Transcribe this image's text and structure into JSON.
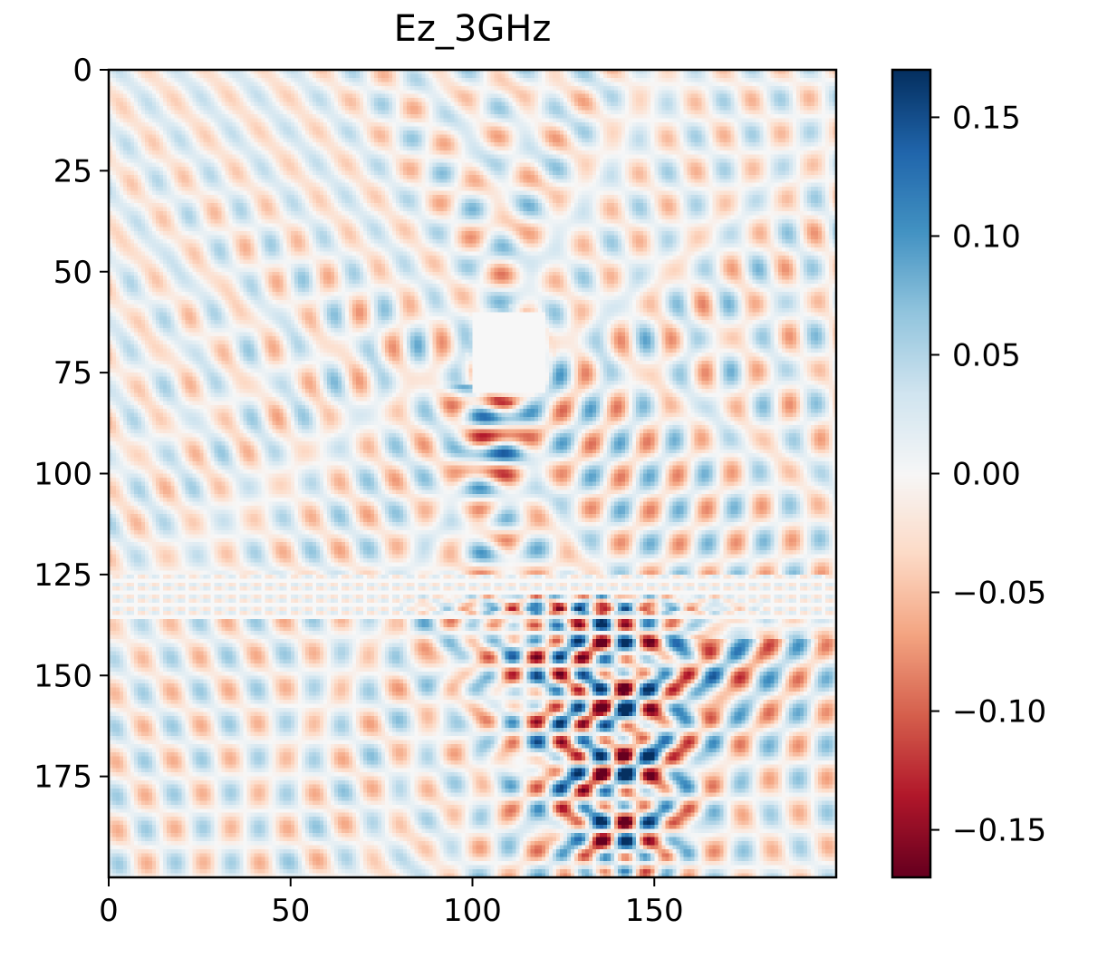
{
  "chart_data": {
    "type": "heatmap",
    "title": "Ez_3GHz",
    "xlabel": "",
    "ylabel": "",
    "grid_size": [
      200,
      200
    ],
    "xlim": [
      0,
      200
    ],
    "ylim": [
      200,
      0
    ],
    "x_ticks": [
      0,
      50,
      100,
      150
    ],
    "x_tick_labels": [
      "0",
      "50",
      "100",
      "150"
    ],
    "y_ticks": [
      0,
      25,
      50,
      75,
      100,
      125,
      150,
      175
    ],
    "y_tick_labels": [
      "0",
      "25",
      "50",
      "75",
      "100",
      "125",
      "150",
      "175"
    ],
    "colormap": "RdBu",
    "value_range": [
      -0.17,
      0.17
    ],
    "colorbar_ticks": [
      0.15,
      0.1,
      0.05,
      0.0,
      -0.05,
      -0.1,
      -0.15
    ],
    "colorbar_tick_labels": [
      "0.15",
      "0.10",
      "0.05",
      "0.00",
      "−0.05",
      "−0.10",
      "−0.15"
    ],
    "features": {
      "blank_region": {
        "x": [
          100,
          120
        ],
        "y": [
          60,
          80
        ],
        "value": 0.0
      },
      "strong_checkerboard_region": {
        "x": [
          80,
          180
        ],
        "y": [
          130,
          200
        ],
        "amplitude": 0.16
      },
      "moderate_standing_wave_region": {
        "x": [
          88,
          122
        ],
        "y": [
          78,
          125
        ],
        "amplitude": 0.12
      },
      "interface_rows": {
        "y": [
          125,
          136
        ]
      }
    },
    "colors": {
      "negative_max": "#67001f",
      "neutral": "#f7f7f7",
      "positive_max": "#053061"
    }
  }
}
